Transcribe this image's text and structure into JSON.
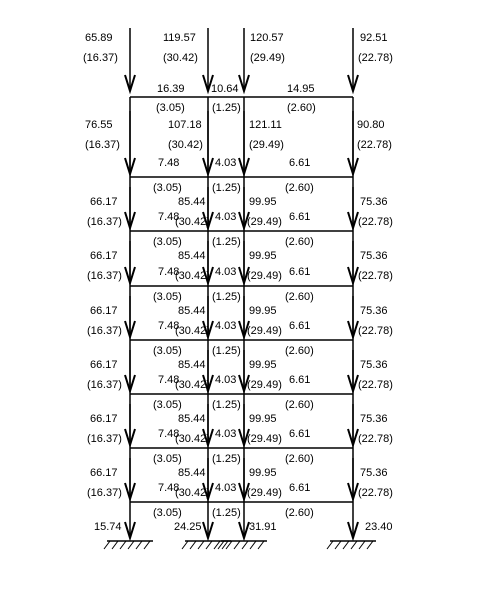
{
  "top_loads": [
    {
      "value": "65.89",
      "paren": "(16.37)"
    },
    {
      "value": "119.57",
      "paren": "(30.42)"
    },
    {
      "value": "120.57",
      "paren": "(29.49)"
    },
    {
      "value": "92.51",
      "paren": "(22.78)"
    }
  ],
  "beams": [
    {
      "spans": [
        {
          "value": "16.39",
          "paren": "(3.05)"
        },
        {
          "value": "10.64",
          "paren": "(1.25)"
        },
        {
          "value": "14.95",
          "paren": "(2.60)"
        }
      ]
    },
    {
      "spans": [
        {
          "value": "7.48",
          "paren": "(3.05)"
        },
        {
          "value": "4.03",
          "paren": "(1.25)"
        },
        {
          "value": "6.61",
          "paren": "(2.60)"
        }
      ]
    },
    {
      "spans": [
        {
          "value": "7.48",
          "paren": "(3.05)"
        },
        {
          "value": "4.03",
          "paren": "(1.25)"
        },
        {
          "value": "6.61",
          "paren": "(2.60)"
        }
      ]
    },
    {
      "spans": [
        {
          "value": "7.48",
          "paren": "(3.05)"
        },
        {
          "value": "4.03",
          "paren": "(1.25)"
        },
        {
          "value": "6.61",
          "paren": "(2.60)"
        }
      ]
    },
    {
      "spans": [
        {
          "value": "7.48",
          "paren": "(3.05)"
        },
        {
          "value": "4.03",
          "paren": "(1.25)"
        },
        {
          "value": "6.61",
          "paren": "(2.60)"
        }
      ]
    },
    {
      "spans": [
        {
          "value": "7.48",
          "paren": "(3.05)"
        },
        {
          "value": "4.03",
          "paren": "(1.25)"
        },
        {
          "value": "6.61",
          "paren": "(2.60)"
        }
      ]
    },
    {
      "spans": [
        {
          "value": "7.48",
          "paren": "(3.05)"
        },
        {
          "value": "4.03",
          "paren": "(1.25)"
        },
        {
          "value": "6.61",
          "paren": "(2.60)"
        }
      ]
    },
    {
      "spans": [
        {
          "value": "7.48",
          "paren": "(3.05)"
        },
        {
          "value": "4.03",
          "paren": "(1.25)"
        },
        {
          "value": "6.61",
          "paren": "(2.60)"
        }
      ]
    }
  ],
  "stories": [
    {
      "loads": [
        {
          "value": "76.55",
          "paren": "(16.37)"
        },
        {
          "value": "107.18",
          "paren": "(30.42)"
        },
        {
          "value": "121.11",
          "paren": "(29.49)"
        },
        {
          "value": "90.80",
          "paren": "(22.78)"
        }
      ]
    },
    {
      "loads": [
        {
          "value": "66.17",
          "paren": "(16.37)"
        },
        {
          "value": "85.44",
          "paren": "(30.42)"
        },
        {
          "value": "99.95",
          "paren": "(29.49)"
        },
        {
          "value": "75.36",
          "paren": "(22.78)"
        }
      ]
    },
    {
      "loads": [
        {
          "value": "66.17",
          "paren": "(16.37)"
        },
        {
          "value": "85.44",
          "paren": "(30.42)"
        },
        {
          "value": "99.95",
          "paren": "(29.49)"
        },
        {
          "value": "75.36",
          "paren": "(22.78)"
        }
      ]
    },
    {
      "loads": [
        {
          "value": "66.17",
          "paren": "(16.37)"
        },
        {
          "value": "85.44",
          "paren": "(30.42)"
        },
        {
          "value": "99.95",
          "paren": "(29.49)"
        },
        {
          "value": "75.36",
          "paren": "(22.78)"
        }
      ]
    },
    {
      "loads": [
        {
          "value": "66.17",
          "paren": "(16.37)"
        },
        {
          "value": "85.44",
          "paren": "(30.42)"
        },
        {
          "value": "99.95",
          "paren": "(29.49)"
        },
        {
          "value": "75.36",
          "paren": "(22.78)"
        }
      ]
    },
    {
      "loads": [
        {
          "value": "66.17",
          "paren": "(16.37)"
        },
        {
          "value": "85.44",
          "paren": "(30.42)"
        },
        {
          "value": "99.95",
          "paren": "(29.49)"
        },
        {
          "value": "75.36",
          "paren": "(22.78)"
        }
      ]
    },
    {
      "loads": [
        {
          "value": "66.17",
          "paren": "(16.37)"
        },
        {
          "value": "85.44",
          "paren": "(30.42)"
        },
        {
          "value": "99.95",
          "paren": "(29.49)"
        },
        {
          "value": "75.36",
          "paren": "(22.78)"
        }
      ]
    }
  ],
  "reactions": [
    "15.74",
    "24.25",
    "31.91",
    "23.40"
  ]
}
